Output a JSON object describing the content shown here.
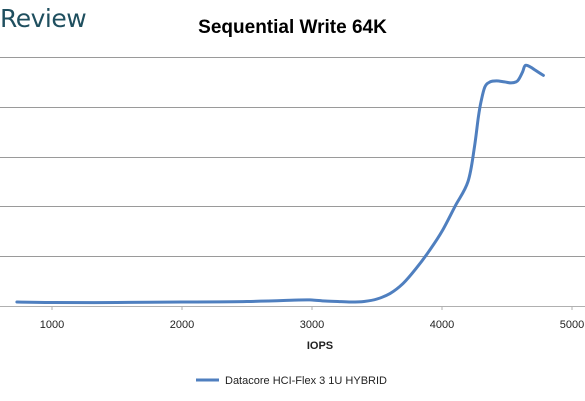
{
  "brand": "Review",
  "chart_data": {
    "type": "line",
    "title": "Sequential Write 64K",
    "xlabel": "IOPS",
    "ylabel": "",
    "xlim": [
      600,
      5100
    ],
    "ylim": [
      0,
      500
    ],
    "x_ticks": [
      1000,
      2000,
      3000,
      4000,
      5000
    ],
    "y_grid": [
      0,
      100,
      200,
      300,
      400,
      500
    ],
    "grid": true,
    "legend_position": "bottom",
    "series": [
      {
        "name": "Datacore HCI-Flex 3 1U HYBRID",
        "color": "#4f7fbf",
        "x": [
          730,
          1000,
          1500,
          2000,
          2500,
          2900,
          3000,
          3100,
          3200,
          3300,
          3400,
          3500,
          3600,
          3700,
          3800,
          3900,
          4000,
          4100,
          4200,
          4250,
          4280,
          4300,
          4330,
          4370,
          4420,
          4480,
          4530,
          4570,
          4590,
          4620,
          4640,
          4680,
          4720,
          4780
        ],
        "y": [
          8,
          7,
          7,
          8,
          9,
          12,
          12,
          10,
          9,
          8,
          9,
          14,
          25,
          45,
          75,
          110,
          150,
          200,
          250,
          320,
          380,
          410,
          440,
          450,
          452,
          450,
          448,
          450,
          455,
          470,
          483,
          480,
          473,
          463
        ]
      }
    ]
  }
}
